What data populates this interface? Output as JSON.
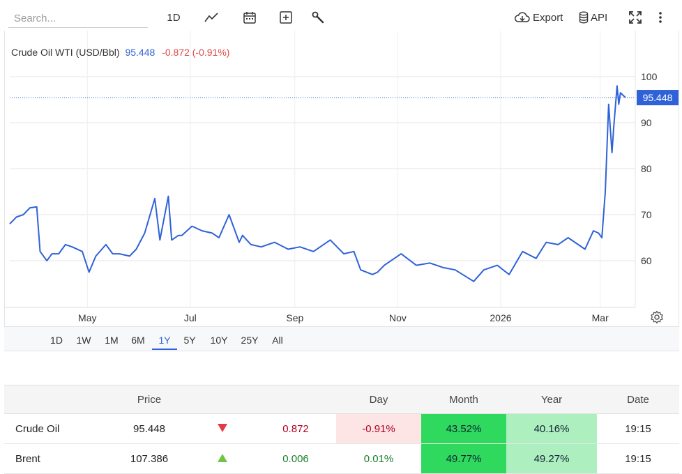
{
  "toolbar": {
    "search_placeholder": "Search...",
    "timeframe_label": "1D",
    "export_label": "Export",
    "api_label": "API",
    "icons": [
      "line-chart-icon",
      "calendar-icon",
      "add-box-icon",
      "wrench-icon",
      "cloud-download-icon",
      "database-icon",
      "fullscreen-icon",
      "more-vert-icon"
    ]
  },
  "chart": {
    "symbol": "Crude Oil WTI (USD/Bbl)",
    "price": "95.448",
    "change": "-0.872 (-0.91%)",
    "last_label": "95.448",
    "colors": {
      "line": "#2f62d8",
      "negative": "#e04a4a",
      "label_bg": "#2f62d8"
    }
  },
  "range_buttons": {
    "b1": "1D",
    "b2": "1W",
    "b3": "1M",
    "b4": "6M",
    "b5": "1Y",
    "b6": "5Y",
    "b7": "10Y",
    "b8": "25Y",
    "b9": "All",
    "active": "1Y"
  },
  "chart_data": {
    "type": "line",
    "title": "Crude Oil WTI (USD/Bbl)",
    "x_tick_labels": [
      "May",
      "Jul",
      "Sep",
      "Nov",
      "2026",
      "Mar"
    ],
    "y_tick_labels": [
      "60",
      "70",
      "80",
      "90",
      "100"
    ],
    "ylim": [
      52,
      102
    ],
    "grid": true,
    "series": [
      {
        "name": "Crude Oil WTI",
        "x": [
          "2025-03-16",
          "2025-03-20",
          "2025-03-24",
          "2025-03-28",
          "2025-04-01",
          "2025-04-03",
          "2025-04-07",
          "2025-04-10",
          "2025-04-14",
          "2025-04-18",
          "2025-04-22",
          "2025-04-28",
          "2025-05-02",
          "2025-05-06",
          "2025-05-12",
          "2025-05-16",
          "2025-05-20",
          "2025-05-26",
          "2025-05-30",
          "2025-06-04",
          "2025-06-10",
          "2025-06-13",
          "2025-06-18",
          "2025-06-20",
          "2025-06-24",
          "2025-06-26",
          "2025-07-02",
          "2025-07-08",
          "2025-07-14",
          "2025-07-18",
          "2025-07-24",
          "2025-07-30",
          "2025-08-01",
          "2025-08-06",
          "2025-08-12",
          "2025-08-20",
          "2025-08-28",
          "2025-09-04",
          "2025-09-12",
          "2025-09-22",
          "2025-09-30",
          "2025-10-06",
          "2025-10-10",
          "2025-10-17",
          "2025-10-20",
          "2025-10-24",
          "2025-11-03",
          "2025-11-12",
          "2025-11-20",
          "2025-11-28",
          "2025-12-05",
          "2025-12-16",
          "2025-12-22",
          "2025-12-30",
          "2026-01-06",
          "2026-01-14",
          "2026-01-22",
          "2026-01-28",
          "2026-02-04",
          "2026-02-10",
          "2026-02-20",
          "2026-02-25",
          "2026-02-28",
          "2026-03-02",
          "2026-03-04",
          "2026-03-06",
          "2026-03-08",
          "2026-03-09",
          "2026-03-11",
          "2026-03-12",
          "2026-03-13",
          "2026-03-16"
        ],
        "values": [
          68,
          69.5,
          70,
          71.5,
          71.7,
          62,
          60,
          61.5,
          61.5,
          63.5,
          63,
          62,
          57.5,
          61,
          63.5,
          61.5,
          61.5,
          61,
          62.5,
          66,
          73.5,
          64.5,
          74,
          64.5,
          65.5,
          65.5,
          67.5,
          66.5,
          66,
          65,
          70,
          64,
          65.5,
          63.5,
          63,
          64,
          62.5,
          63,
          62,
          64.5,
          61.5,
          62,
          58,
          57,
          57.5,
          59,
          61.5,
          59,
          59.5,
          58.5,
          58,
          55.5,
          58,
          59,
          57,
          62,
          60.5,
          64,
          63.5,
          65,
          62.5,
          66.5,
          66,
          65,
          75,
          94,
          83.5,
          89,
          98,
          94,
          96.5,
          95.448
        ]
      }
    ]
  },
  "table": {
    "headers": {
      "name": "",
      "price": "Price",
      "day": "Day",
      "month": "Month",
      "year": "Year",
      "date": "Date"
    },
    "rows": [
      {
        "name": "Crude Oil",
        "price": "95.448",
        "direction": "down",
        "change": "0.872",
        "day_pct": "-0.91%",
        "month_pct": "43.52%",
        "year_pct": "40.16%",
        "date": "19:15"
      },
      {
        "name": "Brent",
        "price": "107.386",
        "direction": "up",
        "change": "0.006",
        "day_pct": "0.01%",
        "month_pct": "49.77%",
        "year_pct": "49.27%",
        "date": "19:15"
      }
    ]
  }
}
